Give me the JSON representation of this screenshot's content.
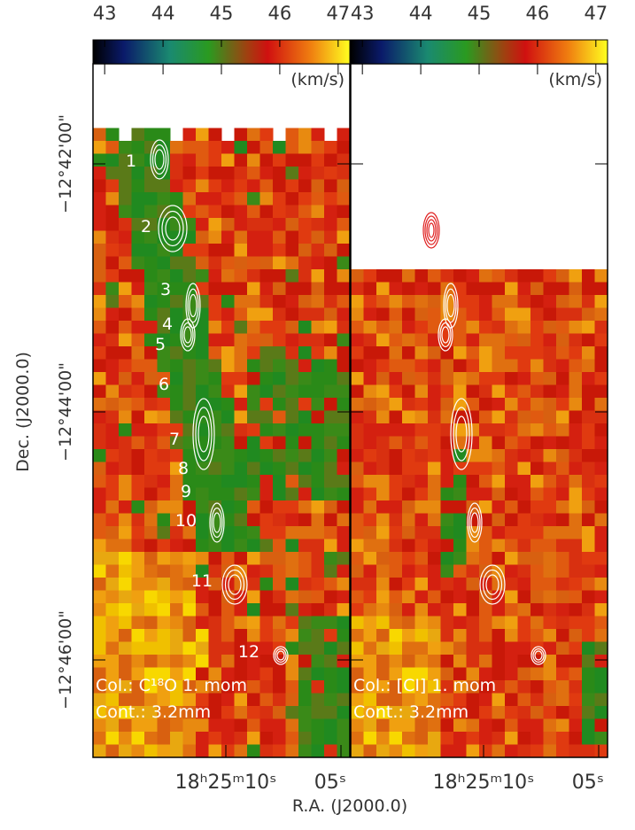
{
  "chart_data": [
    {
      "type": "map",
      "colorbar": {
        "label": "(km/s)",
        "lim": [
          42.8,
          47.2
        ],
        "ticks": [
          43,
          44,
          45,
          46,
          47
        ]
      },
      "annotations": [
        "Col.: C¹⁸O 1. mom",
        "Cont.: 3.2mm"
      ],
      "source_labels": [
        "1",
        "2",
        "3",
        "4",
        "5",
        "6",
        "7",
        "8",
        "9",
        "10",
        "11",
        "12"
      ],
      "xticks": [
        "18ʰ25ᵐ10ˢ",
        "05ˢ"
      ]
    },
    {
      "type": "map",
      "colorbar": {
        "label": "(km/s)",
        "lim": [
          42.8,
          47.2
        ],
        "ticks": [
          43,
          44,
          45,
          46,
          47
        ]
      },
      "annotations": [
        "Col.: [CI] 1. mom",
        "Cont.: 3.2mm"
      ],
      "xticks": [
        "18ʰ25ᵐ10ˢ",
        "05ˢ"
      ]
    }
  ],
  "y_label": "Dec. (J2000.0)",
  "x_label": "R.A. (J2000.0)",
  "yticks": [
    "−12°42'00\"",
    "−12°44'00\"",
    "−12°46'00\""
  ]
}
